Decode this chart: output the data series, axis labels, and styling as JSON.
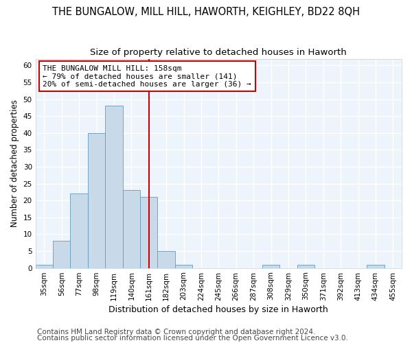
{
  "title": "THE BUNGALOW, MILL HILL, HAWORTH, KEIGHLEY, BD22 8QH",
  "subtitle": "Size of property relative to detached houses in Haworth",
  "xlabel": "Distribution of detached houses by size in Haworth",
  "ylabel": "Number of detached properties",
  "bin_labels": [
    "35sqm",
    "56sqm",
    "77sqm",
    "98sqm",
    "119sqm",
    "140sqm",
    "161sqm",
    "182sqm",
    "203sqm",
    "224sqm",
    "245sqm",
    "266sqm",
    "287sqm",
    "308sqm",
    "329sqm",
    "350sqm",
    "371sqm",
    "392sqm",
    "413sqm",
    "434sqm",
    "455sqm"
  ],
  "bar_values": [
    1,
    8,
    22,
    40,
    48,
    23,
    21,
    5,
    1,
    0,
    0,
    0,
    0,
    1,
    0,
    1,
    0,
    0,
    0,
    1,
    0
  ],
  "bar_color": "#c8daea",
  "bar_edge_color": "#6699bb",
  "vline_x": 6.0,
  "vline_color": "#cc0000",
  "annotation_text": "THE BUNGALOW MILL HILL: 158sqm\n← 79% of detached houses are smaller (141)\n20% of semi-detached houses are larger (36) →",
  "annotation_box_color": "#ffffff",
  "annotation_box_edge": "#cc0000",
  "ylim": [
    0,
    62
  ],
  "yticks": [
    0,
    5,
    10,
    15,
    20,
    25,
    30,
    35,
    40,
    45,
    50,
    55,
    60
  ],
  "footer1": "Contains HM Land Registry data © Crown copyright and database right 2024.",
  "footer2": "Contains public sector information licensed under the Open Government Licence v3.0.",
  "bg_color": "#ffffff",
  "plot_bg_color": "#eef4fb",
  "grid_color": "#ffffff",
  "title_fontsize": 10.5,
  "subtitle_fontsize": 9.5,
  "xlabel_fontsize": 9,
  "ylabel_fontsize": 8.5,
  "tick_fontsize": 7.5,
  "annot_fontsize": 8,
  "footer_fontsize": 7.5
}
